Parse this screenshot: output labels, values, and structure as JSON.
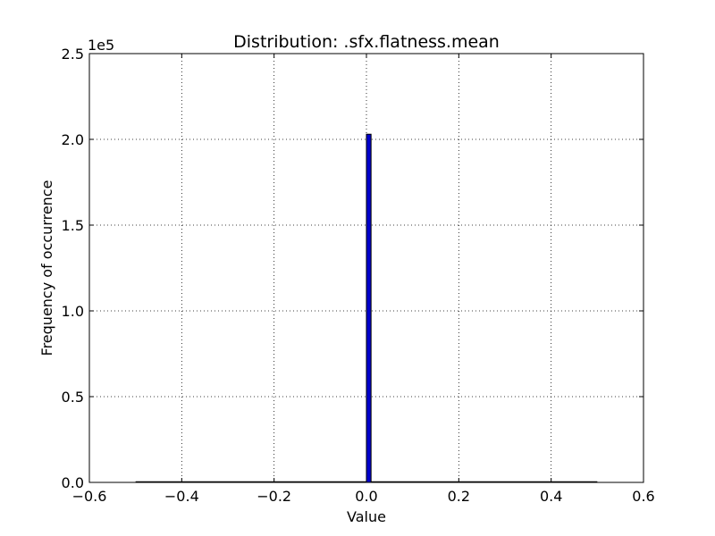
{
  "chart_data": {
    "type": "bar",
    "title": "Distribution: .sfx.flatness.mean",
    "xlabel": "Value",
    "ylabel": "Frequency of occurrence",
    "y_offset_label": "1e5",
    "xlim": [
      -0.6,
      0.6
    ],
    "ylim": [
      0,
      2.5
    ],
    "y_scale_factor": 100000,
    "xticks": [
      -0.6,
      -0.4,
      -0.2,
      0.0,
      0.2,
      0.4,
      0.6
    ],
    "xtick_labels": [
      "−0.6",
      "−0.4",
      "−0.2",
      "0.0",
      "0.2",
      "0.4",
      "0.6"
    ],
    "yticks": [
      0.0,
      0.5,
      1.0,
      1.5,
      2.0,
      2.5
    ],
    "ytick_labels": [
      "0.0",
      "0.5",
      "1.0",
      "1.5",
      "2.0",
      "2.5"
    ],
    "grid": true,
    "grid_style": "dotted",
    "bar_color": "#0000cc",
    "baseline_range": [
      -0.5,
      0.5
    ],
    "bars": [
      {
        "x0": 0.0,
        "x1": 0.01,
        "value": 2.03
      }
    ]
  }
}
